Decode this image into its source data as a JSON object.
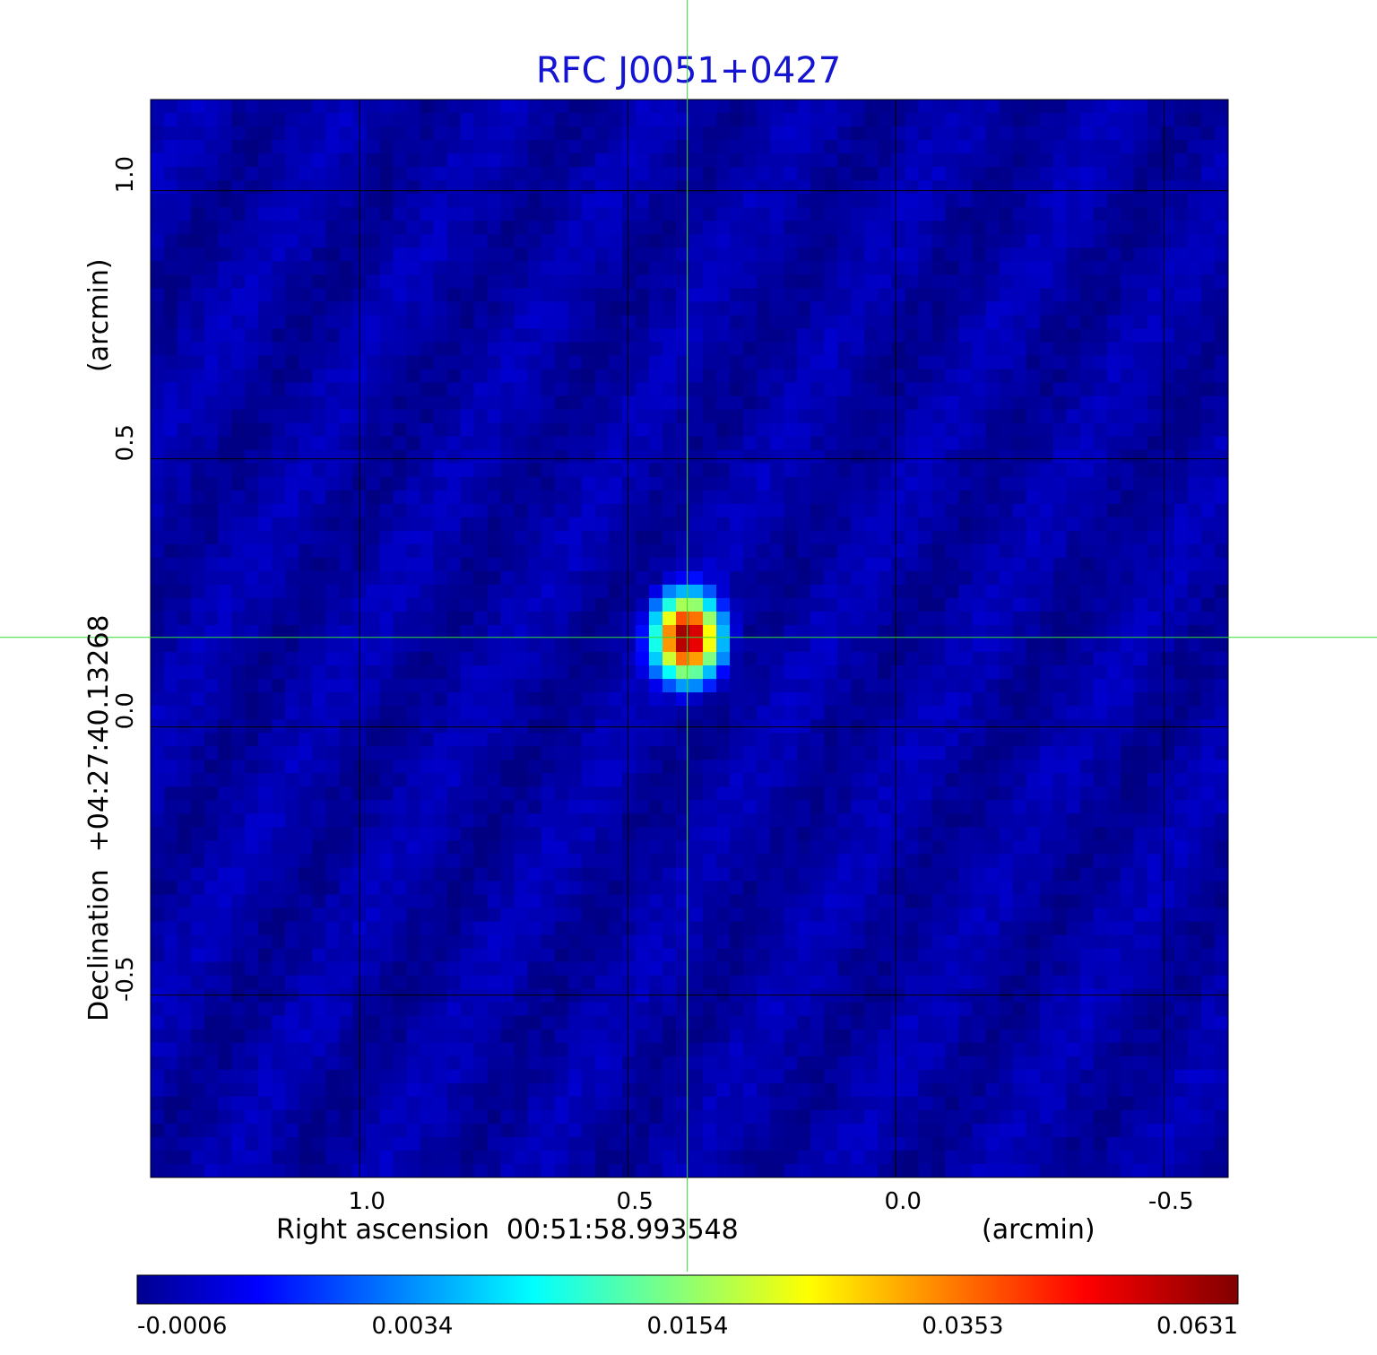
{
  "chart_data": {
    "type": "heatmap",
    "title": "RFC J0051+0427",
    "title_color": "#1414d2",
    "xlabel": "Right ascension  00:51:58.993548",
    "xlabel_unit": "(arcmin)",
    "ylabel": "Declination  +04:27:40.13268",
    "ylabel_unit": "(arcmin)",
    "xlim": [
      1.39,
      -0.62
    ],
    "ylim": [
      -0.84,
      1.17
    ],
    "x_ticks": [
      {
        "value": 1.0,
        "label": "1.0"
      },
      {
        "value": 0.5,
        "label": "0.5"
      },
      {
        "value": 0.0,
        "label": "0.0"
      },
      {
        "value": -0.5,
        "label": "-0.5"
      }
    ],
    "y_ticks": [
      {
        "value": 1.0,
        "label": "1.0"
      },
      {
        "value": 0.5,
        "label": "0.5"
      },
      {
        "value": 0.0,
        "label": "0.0"
      },
      {
        "value": -0.5,
        "label": "-0.5"
      }
    ],
    "grid": true,
    "grid_color": "#000000",
    "crosshair": {
      "x": 0.389,
      "y": 0.167,
      "color": "#33dd33"
    },
    "source": {
      "x": 0.389,
      "y": 0.167,
      "peak": 0.0631
    },
    "background_level": 0.0,
    "colorbar": {
      "min": -0.0006,
      "max": 0.0631,
      "tick_labels": [
        "-0.0006",
        "0.0034",
        "0.0154",
        "0.0353",
        "0.0631"
      ],
      "colormap": "jet"
    }
  }
}
